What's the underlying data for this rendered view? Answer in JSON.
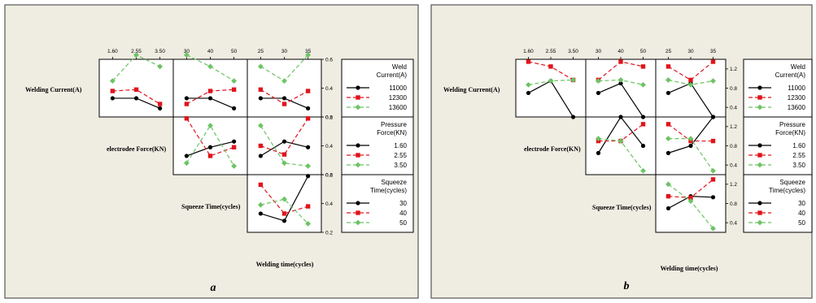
{
  "colors": {
    "s1": "#000000",
    "s2": "#e0141b",
    "s3": "#6cc463"
  },
  "chart_data": [
    {
      "type": "line",
      "panel_label": "a",
      "xlabel": "Welding time(cycles)",
      "factors": [
        {
          "name": "Welding Current(A)",
          "levels": [
            "11000",
            "12300",
            "13600"
          ],
          "legend_title": [
            "Weld",
            "Current(A)"
          ]
        },
        {
          "name": "electrodee Force(KN)",
          "levels": [
            "1.60",
            "2.55",
            "3.50"
          ],
          "legend_title": [
            "Pressure",
            "Force(KN)"
          ]
        },
        {
          "name": "Squeeze Time(cycles)",
          "levels": [
            "30",
            "40",
            "50"
          ],
          "legend_title": [
            "Squeeze",
            "Time(cycles)"
          ]
        },
        {
          "name": "Welding time(cycles)",
          "levels": [
            "25",
            "30",
            "35"
          ]
        }
      ],
      "row_ylim": [
        [
          0.2,
          0.6
        ],
        [
          0.2,
          0.6
        ],
        [
          0.2,
          0.6
        ]
      ],
      "row_yticks": [
        [
          "0.2",
          "0.4",
          "0.6"
        ],
        [
          "0.2",
          "0.4",
          "0.6"
        ],
        [
          "0.2",
          "0.4",
          "0.6"
        ]
      ],
      "cells": [
        {
          "row": 0,
          "col": 1,
          "series": [
            [
              0.33,
              0.33,
              0.26
            ],
            [
              0.38,
              0.39,
              0.29
            ],
            [
              0.45,
              0.63,
              0.55
            ]
          ]
        },
        {
          "row": 0,
          "col": 2,
          "series": [
            [
              0.33,
              0.33,
              0.26
            ],
            [
              0.29,
              0.38,
              0.39
            ],
            [
              0.63,
              0.55,
              0.45
            ]
          ]
        },
        {
          "row": 0,
          "col": 3,
          "series": [
            [
              0.33,
              0.33,
              0.26
            ],
            [
              0.39,
              0.29,
              0.38
            ],
            [
              0.55,
              0.45,
              0.63
            ]
          ]
        },
        {
          "row": 1,
          "col": 2,
          "series": [
            [
              0.33,
              0.39,
              0.43
            ],
            [
              0.59,
              0.33,
              0.39
            ],
            [
              0.28,
              0.54,
              0.26
            ]
          ]
        },
        {
          "row": 1,
          "col": 3,
          "series": [
            [
              0.33,
              0.43,
              0.39
            ],
            [
              0.4,
              0.34,
              0.59
            ],
            [
              0.54,
              0.28,
              0.26
            ]
          ]
        },
        {
          "row": 2,
          "col": 3,
          "series": [
            [
              0.33,
              0.28,
              0.59
            ],
            [
              0.53,
              0.33,
              0.38
            ],
            [
              0.39,
              0.43,
              0.26
            ]
          ]
        }
      ]
    },
    {
      "type": "line",
      "panel_label": "b",
      "xlabel": "Welding time(cycles)",
      "factors": [
        {
          "name": "Welding Current(A)",
          "levels": [
            "11000",
            "12300",
            "13600"
          ],
          "legend_title": [
            "Weld",
            "Current(A)"
          ]
        },
        {
          "name": "electrode Force(KN)",
          "levels": [
            "1.60",
            "2.55",
            "3.50"
          ],
          "legend_title": [
            "Pressure",
            "Force(KN)"
          ]
        },
        {
          "name": "Squeeze Time(cycles)",
          "levels": [
            "30",
            "40",
            "50"
          ],
          "legend_title": [
            "Squeeze",
            "Time(cycles)"
          ]
        },
        {
          "name": "Welding time(cycles)",
          "levels": [
            "25",
            "30",
            "35"
          ]
        }
      ],
      "row_ylim": [
        [
          0.2,
          1.4
        ],
        [
          0.2,
          1.4
        ],
        [
          0.2,
          1.4
        ]
      ],
      "row_yticks": [
        [
          "0.4",
          "0.8",
          "1.2"
        ],
        [
          "0.4",
          "0.8",
          "1.2"
        ],
        [
          "0.4",
          "0.8",
          "1.2"
        ]
      ],
      "cells": [
        {
          "row": 0,
          "col": 1,
          "series": [
            [
              0.7,
              0.95,
              0.2
            ],
            [
              1.35,
              1.25,
              0.97
            ],
            [
              0.87,
              0.95,
              0.97
            ]
          ]
        },
        {
          "row": 0,
          "col": 2,
          "series": [
            [
              0.7,
              0.9,
              0.2
            ],
            [
              0.97,
              1.35,
              1.25
            ],
            [
              0.95,
              0.97,
              0.87
            ]
          ]
        },
        {
          "row": 0,
          "col": 3,
          "series": [
            [
              0.7,
              0.9,
              0.2
            ],
            [
              1.25,
              0.97,
              1.35
            ],
            [
              0.97,
              0.87,
              0.95
            ]
          ]
        },
        {
          "row": 1,
          "col": 2,
          "series": [
            [
              0.65,
              1.4,
              0.8
            ],
            [
              0.9,
              0.9,
              1.25
            ],
            [
              0.95,
              0.9,
              0.28
            ]
          ]
        },
        {
          "row": 1,
          "col": 3,
          "series": [
            [
              0.65,
              0.8,
              1.4
            ],
            [
              1.25,
              0.9,
              0.9
            ],
            [
              0.95,
              0.95,
              0.28
            ]
          ]
        },
        {
          "row": 2,
          "col": 3,
          "series": [
            [
              0.7,
              0.95,
              0.93
            ],
            [
              0.95,
              0.92,
              1.3
            ],
            [
              1.2,
              0.85,
              0.28
            ]
          ]
        }
      ]
    }
  ]
}
